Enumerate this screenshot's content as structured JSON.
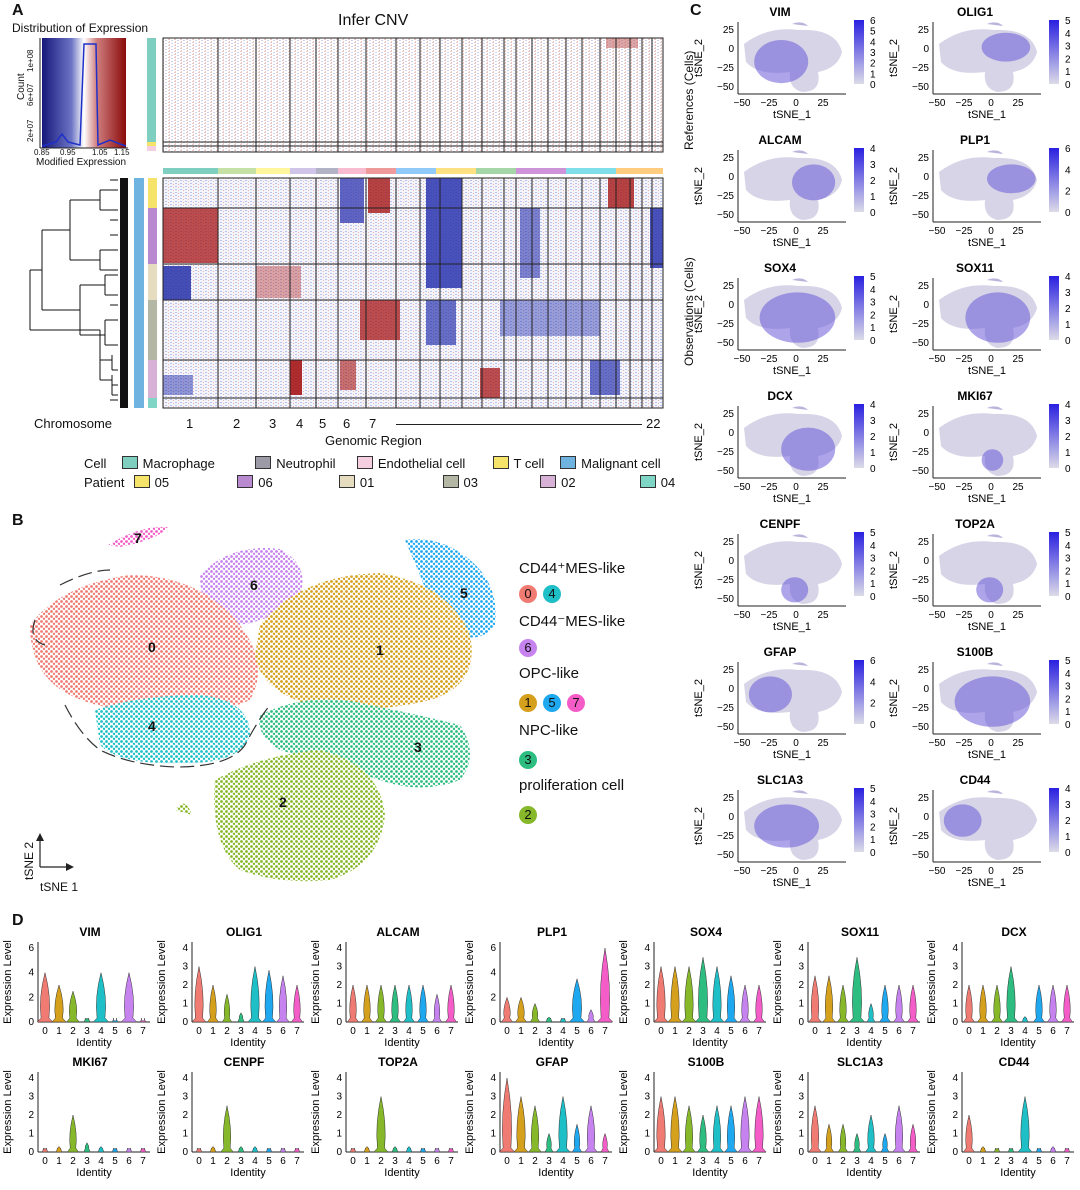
{
  "panelA": {
    "letter": "A",
    "title": "Infer CNV",
    "hist_title": "Distribution of Expression",
    "hist_ylabel": "Count",
    "hist_xlabel": "Modified Expression",
    "hist_yticks": [
      "1e+08",
      "6e+07",
      "2e+07"
    ],
    "hist_xticks": [
      "0.85",
      "0.95",
      "1.05",
      "1.15"
    ],
    "ref_label": "References (Cells)",
    "obs_label": "Observations (Cells)",
    "chrom_label": "Chromosome",
    "chrom_ticks": [
      "1",
      "2",
      "3",
      "4",
      "5",
      "6",
      "7",
      "22"
    ],
    "genomic_label": "Genomic Region",
    "cell_legend_title": "Cell",
    "cell_legend": [
      {
        "label": "Macrophage",
        "color": "#7fcfc0"
      },
      {
        "label": "Neutrophil",
        "color": "#9c9aa6"
      },
      {
        "label": "Endothelial cell",
        "color": "#f5cfe0"
      },
      {
        "label": "T cell",
        "color": "#f6e36a"
      },
      {
        "label": "Malignant cell",
        "color": "#6fb3e0"
      }
    ],
    "patient_legend_title": "Patient",
    "patient_legend": [
      {
        "label": "05",
        "color": "#f6e36a"
      },
      {
        "label": "06",
        "color": "#b98ad0"
      },
      {
        "label": "01",
        "color": "#e6dcc0"
      },
      {
        "label": "03",
        "color": "#b4b7a4"
      },
      {
        "label": "02",
        "color": "#d7b2d6"
      },
      {
        "label": "04",
        "color": "#7fd6c6"
      }
    ]
  },
  "panelB": {
    "letter": "B",
    "axis_y": "tSNE 2",
    "axis_x": "tSNE 1",
    "cluster_labels": [
      "0",
      "1",
      "2",
      "3",
      "4",
      "5",
      "6",
      "7"
    ],
    "cluster_colors": {
      "0": "#f07b72",
      "1": "#d5a01c",
      "2": "#86b82a",
      "3": "#2ebd80",
      "4": "#1ebfc6",
      "5": "#1ea8f0",
      "6": "#c683f0",
      "7": "#f45dc8"
    },
    "groups": [
      {
        "title": "CD44⁺MES-like",
        "clusters": [
          "0",
          "4"
        ]
      },
      {
        "title": "CD44⁻MES-like",
        "clusters": [
          "6"
        ]
      },
      {
        "title": "OPC-like",
        "clusters": [
          "1",
          "5",
          "7"
        ]
      },
      {
        "title": "NPC-like",
        "clusters": [
          "3"
        ]
      },
      {
        "title": "proliferation cell",
        "clusters": [
          "2"
        ]
      }
    ]
  },
  "panelC": {
    "letter": "C",
    "xlabel": "tSNE_1",
    "ylabel": "tSNE_2",
    "xticks": [
      "−50",
      "−25",
      "0",
      "25"
    ],
    "yticks": [
      "25",
      "0",
      "−25",
      "−50"
    ],
    "genes": [
      {
        "name": "VIM",
        "scale": [
          "6",
          "5",
          "4",
          "3",
          "2",
          "1",
          "0"
        ]
      },
      {
        "name": "OLIG1",
        "scale": [
          "5",
          "4",
          "3",
          "2",
          "1",
          "0"
        ]
      },
      {
        "name": "ALCAM",
        "scale": [
          "4",
          "3",
          "2",
          "1",
          "0"
        ]
      },
      {
        "name": "PLP1",
        "scale": [
          "6",
          "4",
          "2",
          "0"
        ]
      },
      {
        "name": "SOX4",
        "scale": [
          "5",
          "4",
          "3",
          "2",
          "1",
          "0"
        ]
      },
      {
        "name": "SOX11",
        "scale": [
          "4",
          "3",
          "2",
          "1",
          "0"
        ]
      },
      {
        "name": "DCX",
        "scale": [
          "4",
          "3",
          "2",
          "1",
          "0"
        ]
      },
      {
        "name": "MKI67",
        "scale": [
          "4",
          "3",
          "2",
          "1",
          "0"
        ]
      },
      {
        "name": "CENPF",
        "scale": [
          "5",
          "4",
          "3",
          "2",
          "1",
          "0"
        ]
      },
      {
        "name": "TOP2A",
        "scale": [
          "5",
          "4",
          "3",
          "2",
          "1",
          "0"
        ]
      },
      {
        "name": "GFAP",
        "scale": [
          "6",
          "4",
          "2",
          "0"
        ]
      },
      {
        "name": "S100B",
        "scale": [
          "5",
          "4",
          "3",
          "2",
          "1",
          "0"
        ]
      },
      {
        "name": "SLC1A3",
        "scale": [
          "5",
          "4",
          "3",
          "2",
          "1",
          "0"
        ]
      },
      {
        "name": "CD44",
        "scale": [
          "4",
          "3",
          "2",
          "1",
          "0"
        ]
      }
    ]
  },
  "panelD": {
    "letter": "D",
    "ylabel": "Expression Level",
    "xlabel": "Identity",
    "identities": [
      "0",
      "1",
      "2",
      "3",
      "4",
      "5",
      "6",
      "7"
    ],
    "genes": [
      {
        "name": "VIM",
        "yticks": [
          "6",
          "4",
          "2",
          "0"
        ],
        "ymax": 6,
        "levels": [
          4,
          3,
          2.5,
          0.3,
          4,
          0.1,
          4,
          0.1
        ]
      },
      {
        "name": "OLIG1",
        "yticks": [
          "4",
          "3",
          "2",
          "1",
          "0"
        ],
        "ymax": 4,
        "levels": [
          3,
          2,
          1.5,
          0.5,
          3,
          2.8,
          2.5,
          2
        ]
      },
      {
        "name": "ALCAM",
        "yticks": [
          "4",
          "3",
          "2",
          "1",
          "0"
        ],
        "ymax": 4,
        "levels": [
          2,
          2,
          2,
          2,
          2,
          2,
          1.5,
          2
        ]
      },
      {
        "name": "PLP1",
        "yticks": [
          "6",
          "4",
          "2",
          "0"
        ],
        "ymax": 6,
        "levels": [
          2,
          2,
          1.5,
          0.4,
          0.3,
          3.5,
          1,
          6
        ]
      },
      {
        "name": "SOX4",
        "yticks": [
          "4",
          "3",
          "2",
          "1",
          "0"
        ],
        "ymax": 4,
        "levels": [
          3,
          3,
          3,
          3.5,
          3,
          2.5,
          2,
          2
        ]
      },
      {
        "name": "SOX11",
        "yticks": [
          "4",
          "3",
          "2",
          "1",
          "0"
        ],
        "ymax": 4,
        "levels": [
          2.5,
          2.5,
          2,
          3.5,
          1,
          2,
          2,
          2
        ]
      },
      {
        "name": "DCX",
        "yticks": [
          "4",
          "3",
          "2",
          "1",
          "0"
        ],
        "ymax": 4,
        "levels": [
          2,
          2,
          2,
          3,
          0.3,
          2,
          2,
          2
        ]
      },
      {
        "name": "MKI67",
        "yticks": [
          "4",
          "3",
          "2",
          "1",
          "0"
        ],
        "ymax": 4,
        "levels": [
          0.2,
          0.3,
          2,
          0.5,
          0.3,
          0.2,
          0.2,
          0.2
        ]
      },
      {
        "name": "CENPF",
        "yticks": [
          "4",
          "3",
          "2",
          "1",
          "0"
        ],
        "ymax": 4,
        "levels": [
          0.2,
          0.3,
          2.5,
          0.3,
          0.3,
          0.2,
          0.2,
          0.2
        ]
      },
      {
        "name": "TOP2A",
        "yticks": [
          "4",
          "3",
          "2",
          "1",
          "0"
        ],
        "ymax": 4,
        "levels": [
          0.2,
          0.3,
          3,
          0.3,
          0.3,
          0.2,
          0.2,
          0.2
        ]
      },
      {
        "name": "GFAP",
        "yticks": [
          "4",
          "3",
          "2",
          "1",
          "0"
        ],
        "ymax": 4,
        "levels": [
          4,
          3,
          2.5,
          1,
          3,
          1.5,
          2.5,
          1
        ]
      },
      {
        "name": "S100B",
        "yticks": [
          "4",
          "3",
          "2",
          "1",
          "0"
        ],
        "ymax": 4,
        "levels": [
          3,
          3,
          2.5,
          2,
          2.5,
          2.5,
          3,
          3
        ]
      },
      {
        "name": "SLC1A3",
        "yticks": [
          "4",
          "3",
          "2",
          "1",
          "0"
        ],
        "ymax": 4,
        "levels": [
          2.5,
          1.5,
          1.5,
          1,
          2,
          1,
          2.5,
          1.5
        ]
      },
      {
        "name": "CD44",
        "yticks": [
          "4",
          "3",
          "2",
          "1",
          "0"
        ],
        "ymax": 4,
        "levels": [
          2,
          0.3,
          0.2,
          0.2,
          3,
          0.2,
          0.3,
          0.2
        ]
      }
    ]
  }
}
